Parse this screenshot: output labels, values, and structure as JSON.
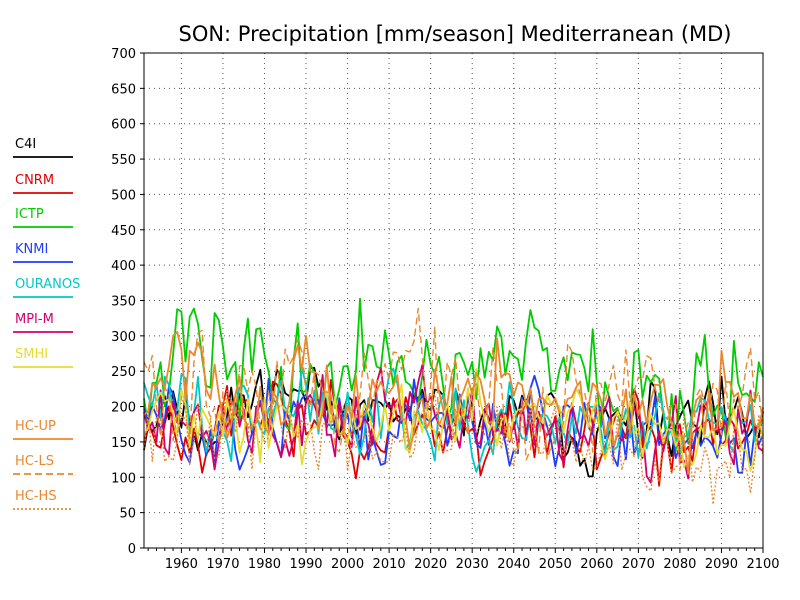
{
  "chart_data": {
    "type": "line",
    "title": "SON: Precipitation [mm/season] Mediterranean (MD)",
    "xlabel": "",
    "ylabel": "",
    "xlim": [
      1951,
      2100
    ],
    "ylim": [
      0,
      700
    ],
    "x_ticks": [
      "1960",
      "1970",
      "1980",
      "1990",
      "2000",
      "2010",
      "2020",
      "2030",
      "2040",
      "2050",
      "2060",
      "2070",
      "2080",
      "2090",
      "2100"
    ],
    "y_ticks": [
      "0",
      "50",
      "100",
      "150",
      "200",
      "250",
      "300",
      "350",
      "400",
      "450",
      "500",
      "550",
      "600",
      "650",
      "700"
    ],
    "grid": true,
    "legend_position": "left",
    "series": [
      {
        "name": "C4I",
        "color": "#000000",
        "dash": "solid",
        "start": 1951,
        "end": 2100,
        "anchors": [
          [
            1951,
            170
          ],
          [
            1956,
            210
          ],
          [
            1960,
            190
          ],
          [
            1966,
            160
          ],
          [
            1972,
            190
          ],
          [
            1978,
            200
          ],
          [
            1984,
            230
          ],
          [
            1990,
            190
          ],
          [
            1994,
            225
          ],
          [
            2000,
            190
          ],
          [
            2006,
            200
          ],
          [
            2012,
            185
          ],
          [
            2018,
            190
          ],
          [
            2024,
            190
          ],
          [
            2028,
            205
          ],
          [
            2034,
            170
          ],
          [
            2040,
            185
          ],
          [
            2046,
            185
          ],
          [
            2052,
            170
          ],
          [
            2060,
            165
          ],
          [
            2070,
            165
          ],
          [
            2080,
            160
          ],
          [
            2090,
            170
          ],
          [
            2100,
            160
          ]
        ],
        "amp": 38,
        "seed": 11,
        "min": 95,
        "max": 270
      },
      {
        "name": "CNRM",
        "color": "#e00000",
        "dash": "solid",
        "start": 1951,
        "end": 2100,
        "anchors": [
          [
            1951,
            165
          ],
          [
            1960,
            180
          ],
          [
            1970,
            185
          ],
          [
            1980,
            180
          ],
          [
            1990,
            175
          ],
          [
            2000,
            175
          ],
          [
            2010,
            170
          ],
          [
            2020,
            185
          ],
          [
            2030,
            170
          ],
          [
            2040,
            175
          ],
          [
            2050,
            165
          ],
          [
            2060,
            160
          ],
          [
            2070,
            160
          ],
          [
            2080,
            150
          ],
          [
            2090,
            155
          ],
          [
            2100,
            150
          ]
        ],
        "amp": 45,
        "seed": 23,
        "min": 50,
        "max": 300
      },
      {
        "name": "ICTP",
        "color": "#00cc00",
        "dash": "solid",
        "start": 1951,
        "end": 2100,
        "anchors": [
          [
            1951,
            245
          ],
          [
            1958,
            265
          ],
          [
            1962,
            320
          ],
          [
            1970,
            250
          ],
          [
            1980,
            240
          ],
          [
            1990,
            245
          ],
          [
            2000,
            250
          ],
          [
            2010,
            260
          ],
          [
            2020,
            240
          ],
          [
            2030,
            245
          ],
          [
            2040,
            255
          ],
          [
            2048,
            255
          ],
          [
            2060,
            230
          ],
          [
            2070,
            240
          ],
          [
            2080,
            230
          ],
          [
            2090,
            245
          ],
          [
            2100,
            240
          ]
        ],
        "amp": 55,
        "seed": 37,
        "min": 110,
        "max": 435
      },
      {
        "name": "KNMI",
        "color": "#1e3cff",
        "dash": "solid",
        "start": 1951,
        "end": 2100,
        "anchors": [
          [
            1951,
            175
          ],
          [
            1960,
            185
          ],
          [
            1970,
            165
          ],
          [
            1980,
            180
          ],
          [
            1990,
            185
          ],
          [
            2000,
            175
          ],
          [
            2010,
            180
          ],
          [
            2020,
            185
          ],
          [
            2030,
            175
          ],
          [
            2040,
            180
          ],
          [
            2047,
            200
          ],
          [
            2055,
            165
          ],
          [
            2060,
            165
          ],
          [
            2070,
            160
          ],
          [
            2080,
            160
          ],
          [
            2090,
            160
          ],
          [
            2100,
            155
          ]
        ],
        "amp": 42,
        "seed": 51,
        "min": 60,
        "max": 320
      },
      {
        "name": "OURANOS",
        "color": "#00c8c8",
        "dash": "solid",
        "start": 1951,
        "end": 2100,
        "anchors": [
          [
            1951,
            195
          ],
          [
            1960,
            205
          ],
          [
            1965,
            215
          ],
          [
            1970,
            185
          ],
          [
            1980,
            200
          ],
          [
            1990,
            195
          ],
          [
            2000,
            190
          ],
          [
            2010,
            195
          ],
          [
            2020,
            200
          ],
          [
            2030,
            190
          ],
          [
            2040,
            195
          ],
          [
            2050,
            185
          ],
          [
            2060,
            185
          ],
          [
            2070,
            185
          ],
          [
            2080,
            180
          ],
          [
            2090,
            180
          ],
          [
            2100,
            175
          ]
        ],
        "amp": 40,
        "seed": 63,
        "min": 90,
        "max": 310
      },
      {
        "name": "MPI-M",
        "color": "#d2006e",
        "dash": "solid",
        "start": 1951,
        "end": 2100,
        "anchors": [
          [
            1951,
            185
          ],
          [
            1960,
            195
          ],
          [
            1970,
            175
          ],
          [
            1980,
            190
          ],
          [
            1990,
            185
          ],
          [
            2000,
            180
          ],
          [
            2010,
            185
          ],
          [
            2020,
            190
          ],
          [
            2030,
            180
          ],
          [
            2040,
            185
          ],
          [
            2050,
            170
          ],
          [
            2060,
            170
          ],
          [
            2070,
            165
          ],
          [
            2080,
            160
          ],
          [
            2090,
            160
          ],
          [
            2100,
            155
          ]
        ],
        "amp": 45,
        "seed": 79,
        "min": 50,
        "max": 310
      },
      {
        "name": "SMHI",
        "color": "#e6dc32",
        "dash": "solid",
        "start": 1951,
        "end": 2100,
        "anchors": [
          [
            1951,
            190
          ],
          [
            1960,
            200
          ],
          [
            1970,
            180
          ],
          [
            1980,
            195
          ],
          [
            1990,
            190
          ],
          [
            2000,
            185
          ],
          [
            2010,
            190
          ],
          [
            2020,
            185
          ],
          [
            2030,
            185
          ],
          [
            2040,
            185
          ],
          [
            2050,
            175
          ],
          [
            2060,
            170
          ],
          [
            2070,
            170
          ],
          [
            2080,
            165
          ],
          [
            2090,
            160
          ],
          [
            2100,
            160
          ]
        ],
        "amp": 38,
        "seed": 91,
        "min": 90,
        "max": 290
      },
      {
        "name": "HC-UP",
        "color": "#e8892e",
        "dash": "solid",
        "start": 1951,
        "end": 2100,
        "anchors": [
          [
            1951,
            205
          ],
          [
            1960,
            215
          ],
          [
            1970,
            195
          ],
          [
            1980,
            210
          ],
          [
            1990,
            205
          ],
          [
            2000,
            200
          ],
          [
            2010,
            205
          ],
          [
            2020,
            210
          ],
          [
            2030,
            200
          ],
          [
            2040,
            205
          ],
          [
            2050,
            190
          ],
          [
            2060,
            195
          ],
          [
            2070,
            190
          ],
          [
            2080,
            185
          ],
          [
            2090,
            190
          ],
          [
            2100,
            185
          ]
        ],
        "amp": 50,
        "seed": 103,
        "min": 70,
        "max": 355
      },
      {
        "name": "HC-LS",
        "color": "#e8892e",
        "dash": "dashed",
        "start": 1951,
        "end": 2100,
        "anchors": [
          [
            1951,
            215
          ],
          [
            1960,
            225
          ],
          [
            1970,
            205
          ],
          [
            1983,
            235
          ],
          [
            1990,
            215
          ],
          [
            2000,
            210
          ],
          [
            2010,
            210
          ],
          [
            2020,
            220
          ],
          [
            2030,
            205
          ],
          [
            2040,
            215
          ],
          [
            2050,
            200
          ],
          [
            2060,
            205
          ],
          [
            2070,
            200
          ],
          [
            2080,
            200
          ],
          [
            2090,
            215
          ],
          [
            2100,
            205
          ]
        ],
        "amp": 60,
        "seed": 117,
        "min": 60,
        "max": 425
      },
      {
        "name": "HC-HS",
        "color": "#e8892e",
        "dash": "dotted",
        "start": 1951,
        "end": 2100,
        "anchors": [
          [
            1951,
            170
          ],
          [
            1960,
            175
          ],
          [
            1970,
            160
          ],
          [
            1980,
            170
          ],
          [
            1990,
            165
          ],
          [
            2000,
            160
          ],
          [
            2010,
            160
          ],
          [
            2020,
            165
          ],
          [
            2030,
            155
          ],
          [
            2040,
            160
          ],
          [
            2050,
            145
          ],
          [
            2060,
            140
          ],
          [
            2070,
            135
          ],
          [
            2080,
            130
          ],
          [
            2090,
            125
          ],
          [
            2100,
            120
          ]
        ],
        "amp": 42,
        "seed": 131,
        "min": 30,
        "max": 290
      }
    ]
  }
}
